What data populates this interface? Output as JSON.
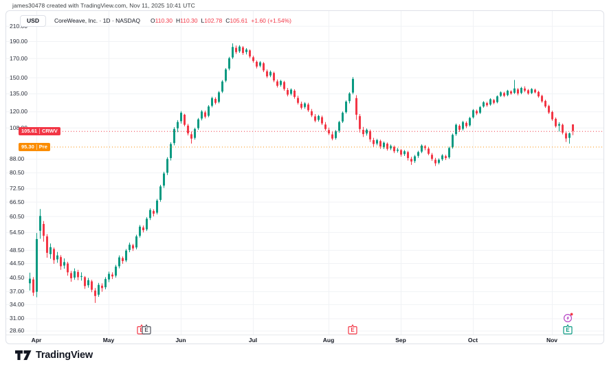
{
  "attribution": "james30478 created with TradingView.com, Nov 11, 2025 10:41 UTC",
  "legend": {
    "currency_button": "USD",
    "title": "CoreWeave, Inc. · 1D · NASDAQ",
    "ohlc": {
      "o_label": "O",
      "o": "110.30",
      "h_label": "H",
      "h": "110.30",
      "l_label": "L",
      "l": "102.78",
      "c_label": "C",
      "c": "105.61",
      "change": "+1.60 (+1.54%)"
    }
  },
  "colors": {
    "up": "#089981",
    "down": "#f23645",
    "grid": "#f0f2f5",
    "axis_line": "#e6e8ec",
    "last_price": "#f23645",
    "premarket": "#fb8c00",
    "key_event": "#b544c4",
    "earnings_gray": "#50535e"
  },
  "price_lines": [
    {
      "value": "105.61",
      "tag": "CRWV",
      "price": 105.61,
      "color": "#f23645"
    },
    {
      "value": "95.30",
      "tag": "Pre",
      "price": 95.3,
      "color": "#fb8c00"
    }
  ],
  "footer": {
    "logo_text": "TradingView"
  },
  "chart_data": {
    "type": "candlestick",
    "title": "CoreWeave, Inc. · 1D · NASDAQ",
    "symbol": "CRWV",
    "exchange": "NASDAQ",
    "interval": "1D",
    "currency": "USD",
    "scale": "logarithmic",
    "ylim": [
      28.6,
      210
    ],
    "grid": true,
    "last_bar": {
      "open": 110.3,
      "high": 110.3,
      "low": 102.78,
      "close": 105.61,
      "change": "+1.60 (+1.54%)"
    },
    "premarket_price": 95.3,
    "price_ticks": [
      210.0,
      190.0,
      170.0,
      150.0,
      135.0,
      120.0,
      108.0,
      88.0,
      80.5,
      72.5,
      66.5,
      60.5,
      54.5,
      48.5,
      44.5,
      40.5,
      37.0,
      34.0,
      31.0,
      28.6
    ],
    "months": [
      {
        "label": "Apr",
        "index": 2
      },
      {
        "label": "May",
        "index": 23
      },
      {
        "label": "Jun",
        "index": 44
      },
      {
        "label": "Jul",
        "index": 65
      },
      {
        "label": "Aug",
        "index": 87
      },
      {
        "label": "Sep",
        "index": 108
      },
      {
        "label": "Oct",
        "index": 129
      },
      {
        "label": "Nov",
        "index": 152
      }
    ],
    "markers": [
      {
        "name": "earnings-badge-may-back",
        "kind": "earnings",
        "glyph": "E",
        "color": "#f23645",
        "index": 32.6
      },
      {
        "name": "earnings-badge-may-front",
        "kind": "earnings",
        "glyph": "E",
        "color": "#50535e",
        "index": 34.0
      },
      {
        "name": "earnings-badge-aug",
        "kind": "earnings",
        "glyph": "E",
        "color": "#f23645",
        "index": 94.0
      },
      {
        "name": "key-events-icon",
        "kind": "key-event",
        "glyph": "lightning",
        "color": "#b544c4",
        "index": 156.6
      },
      {
        "name": "earnings-badge-nov",
        "kind": "earnings",
        "glyph": "E",
        "color": "#089981",
        "index": 156.6
      }
    ],
    "candles": [
      [
        39.0,
        41.8,
        37.2,
        40.2
      ],
      [
        40.0,
        40.6,
        35.9,
        36.7
      ],
      [
        36.9,
        54.2,
        35.6,
        52.1
      ],
      [
        55.0,
        63.4,
        52.2,
        60.6
      ],
      [
        57.5,
        58.6,
        51.2,
        53.2
      ],
      [
        53.0,
        53.8,
        46.1,
        47.6
      ],
      [
        47.2,
        50.6,
        45.8,
        49.4
      ],
      [
        48.8,
        49.3,
        44.3,
        45.4
      ],
      [
        45.6,
        47.9,
        44.6,
        46.8
      ],
      [
        46.3,
        46.9,
        42.6,
        43.6
      ],
      [
        43.8,
        45.9,
        42.9,
        44.8
      ],
      [
        44.4,
        44.9,
        41.0,
        41.9
      ],
      [
        41.7,
        42.3,
        39.4,
        40.3
      ],
      [
        40.5,
        43.0,
        39.9,
        42.2
      ],
      [
        42.0,
        42.6,
        39.8,
        40.6
      ],
      [
        40.7,
        41.9,
        39.7,
        40.9
      ],
      [
        40.6,
        40.9,
        37.6,
        38.3
      ],
      [
        38.5,
        40.4,
        37.9,
        39.8
      ],
      [
        39.5,
        39.9,
        36.8,
        37.4
      ],
      [
        37.2,
        37.8,
        34.3,
        35.9
      ],
      [
        36.2,
        39.1,
        35.7,
        38.6
      ],
      [
        38.4,
        39.0,
        36.9,
        37.8
      ],
      [
        38.0,
        40.6,
        37.5,
        40.1
      ],
      [
        40.0,
        42.1,
        39.3,
        41.5
      ],
      [
        41.3,
        41.9,
        40.1,
        40.8
      ],
      [
        41.0,
        44.0,
        40.5,
        43.5
      ],
      [
        43.6,
        46.8,
        43.0,
        46.2
      ],
      [
        46.0,
        46.5,
        44.3,
        45.1
      ],
      [
        45.3,
        48.8,
        44.8,
        48.3
      ],
      [
        48.5,
        50.9,
        47.8,
        50.2
      ],
      [
        50.0,
        50.5,
        48.2,
        49.0
      ],
      [
        49.3,
        53.6,
        48.7,
        53.0
      ],
      [
        53.2,
        57.1,
        52.6,
        56.5
      ],
      [
        56.2,
        56.9,
        54.4,
        55.2
      ],
      [
        55.5,
        60.1,
        54.9,
        59.5
      ],
      [
        59.8,
        63.7,
        59.0,
        63.0
      ],
      [
        62.6,
        63.3,
        60.4,
        61.5
      ],
      [
        61.9,
        67.7,
        61.2,
        67.0
      ],
      [
        67.3,
        74.3,
        66.5,
        73.5
      ],
      [
        73.9,
        80.9,
        72.8,
        80.0
      ],
      [
        80.4,
        89.0,
        79.2,
        88.0
      ],
      [
        88.5,
        98.1,
        87.1,
        97.0
      ],
      [
        97.6,
        108.3,
        96.2,
        107.0
      ],
      [
        107.5,
        113.4,
        104.8,
        112.0
      ],
      [
        112.6,
        120.3,
        110.9,
        119.0
      ],
      [
        117.5,
        118.2,
        108.9,
        110.0
      ],
      [
        109.4,
        110.6,
        102.6,
        104.0
      ],
      [
        103.4,
        105.2,
        97.3,
        100.5
      ],
      [
        101.0,
        107.9,
        99.8,
        107.0
      ],
      [
        107.6,
        115.0,
        106.4,
        114.0
      ],
      [
        114.6,
        121.1,
        113.2,
        120.0
      ],
      [
        119.3,
        120.7,
        114.7,
        116.0
      ],
      [
        116.7,
        125.1,
        115.6,
        124.0
      ],
      [
        124.6,
        132.2,
        123.3,
        131.0
      ],
      [
        130.3,
        131.7,
        125.6,
        127.0
      ],
      [
        127.8,
        137.2,
        126.6,
        136.0
      ],
      [
        136.7,
        147.3,
        135.4,
        146.0
      ],
      [
        146.8,
        159.4,
        145.3,
        158.0
      ],
      [
        158.9,
        171.6,
        157.1,
        170.0
      ],
      [
        170.9,
        187.4,
        169.2,
        183.0
      ],
      [
        182.0,
        184.8,
        174.9,
        177.0
      ],
      [
        177.9,
        185.2,
        176.1,
        183.5
      ],
      [
        182.5,
        184.1,
        173.8,
        176.0
      ],
      [
        177.0,
        181.7,
        174.3,
        180.0
      ],
      [
        179.0,
        180.2,
        170.1,
        172.0
      ],
      [
        171.1,
        172.8,
        165.1,
        167.0
      ],
      [
        166.1,
        167.6,
        159.0,
        161.0
      ],
      [
        161.9,
        166.9,
        160.2,
        165.5
      ],
      [
        164.5,
        165.9,
        155.2,
        157.0
      ],
      [
        156.1,
        158.0,
        149.3,
        151.0
      ],
      [
        151.9,
        156.9,
        150.3,
        155.5
      ],
      [
        154.4,
        155.7,
        145.4,
        147.0
      ],
      [
        146.1,
        148.0,
        140.4,
        142.0
      ],
      [
        142.8,
        147.7,
        141.2,
        146.5
      ],
      [
        145.5,
        146.7,
        137.4,
        139.0
      ],
      [
        138.1,
        140.0,
        132.5,
        134.0
      ],
      [
        134.7,
        139.6,
        133.3,
        138.5
      ],
      [
        137.5,
        138.8,
        130.5,
        132.0
      ],
      [
        131.1,
        133.0,
        125.6,
        127.0
      ],
      [
        126.2,
        128.0,
        121.6,
        123.0
      ],
      [
        123.6,
        127.5,
        122.2,
        126.5
      ],
      [
        125.6,
        127.0,
        119.7,
        121.0
      ],
      [
        120.2,
        122.0,
        115.7,
        117.0
      ],
      [
        116.2,
        118.0,
        111.8,
        113.0
      ],
      [
        113.6,
        117.4,
        112.3,
        116.5
      ],
      [
        115.6,
        116.8,
        109.8,
        111.0
      ],
      [
        110.2,
        112.0,
        105.8,
        107.0
      ],
      [
        106.3,
        108.0,
        102.9,
        104.0
      ],
      [
        103.3,
        105.0,
        99.4,
        100.5
      ],
      [
        100.9,
        106.3,
        99.8,
        105.5
      ],
      [
        105.8,
        112.9,
        104.4,
        112.0
      ],
      [
        112.4,
        120.0,
        111.3,
        119.0
      ],
      [
        119.5,
        129.0,
        118.4,
        128.0
      ],
      [
        128.4,
        136.1,
        126.5,
        135.0
      ],
      [
        135.8,
        150.3,
        134.3,
        148.5
      ],
      [
        131.0,
        133.5,
        113.6,
        117.5
      ],
      [
        116.4,
        118.0,
        104.6,
        107.0
      ],
      [
        106.4,
        108.5,
        101.6,
        103.5
      ],
      [
        103.9,
        107.4,
        102.5,
        106.5
      ],
      [
        105.5,
        106.6,
        98.3,
        100.0
      ],
      [
        99.5,
        101.0,
        95.3,
        97.0
      ],
      [
        97.3,
        100.4,
        96.2,
        99.5
      ],
      [
        98.9,
        99.8,
        94.0,
        95.5
      ],
      [
        95.0,
        98.6,
        93.9,
        97.8
      ],
      [
        97.2,
        98.0,
        92.9,
        94.0
      ],
      [
        94.3,
        96.7,
        93.2,
        95.8
      ],
      [
        95.2,
        96.0,
        91.4,
        92.5
      ],
      [
        92.8,
        94.6,
        91.7,
        93.5
      ],
      [
        93.2,
        93.9,
        89.3,
        90.5
      ],
      [
        90.8,
        93.3,
        89.7,
        92.5
      ],
      [
        92.0,
        92.8,
        87.1,
        88.5
      ],
      [
        88.0,
        89.2,
        84.6,
        86.5
      ],
      [
        86.8,
        90.3,
        85.7,
        89.5
      ],
      [
        89.8,
        92.8,
        88.6,
        92.0
      ],
      [
        92.3,
        96.8,
        91.4,
        96.0
      ],
      [
        95.6,
        96.4,
        93.1,
        94.5
      ],
      [
        94.1,
        95.0,
        90.1,
        91.0
      ],
      [
        90.4,
        91.5,
        86.9,
        88.0
      ],
      [
        87.5,
        88.6,
        84.0,
        85.5
      ],
      [
        85.8,
        88.3,
        84.9,
        87.5
      ],
      [
        87.8,
        90.8,
        86.9,
        90.0
      ],
      [
        89.6,
        90.4,
        87.4,
        88.5
      ],
      [
        88.9,
        95.3,
        88.0,
        94.5
      ],
      [
        94.9,
        103.9,
        94.1,
        103.0
      ],
      [
        103.5,
        110.9,
        102.4,
        110.0
      ],
      [
        109.3,
        110.4,
        105.1,
        106.5
      ],
      [
        107.1,
        112.9,
        106.0,
        112.0
      ],
      [
        111.4,
        112.5,
        107.6,
        109.0
      ],
      [
        109.6,
        115.9,
        108.7,
        115.0
      ],
      [
        115.5,
        121.9,
        114.6,
        121.0
      ],
      [
        120.4,
        121.5,
        117.2,
        118.5
      ],
      [
        119.0,
        124.4,
        118.1,
        123.5
      ],
      [
        124.0,
        128.4,
        123.0,
        127.5
      ],
      [
        126.8,
        127.9,
        123.8,
        125.0
      ],
      [
        125.6,
        130.9,
        124.6,
        130.0
      ],
      [
        129.3,
        130.3,
        125.8,
        127.0
      ],
      [
        127.6,
        133.3,
        126.6,
        132.5
      ],
      [
        133.0,
        136.9,
        132.0,
        136.0
      ],
      [
        135.4,
        136.5,
        131.8,
        133.0
      ],
      [
        133.6,
        138.3,
        132.6,
        137.5
      ],
      [
        136.9,
        137.9,
        133.9,
        135.0
      ],
      [
        135.6,
        147.5,
        134.6,
        139.5
      ],
      [
        138.7,
        139.9,
        133.4,
        135.0
      ],
      [
        135.5,
        141.0,
        134.4,
        140.0
      ],
      [
        139.5,
        141.5,
        136.1,
        137.5
      ],
      [
        137.9,
        139.0,
        133.9,
        135.0
      ],
      [
        135.4,
        139.8,
        134.5,
        139.0
      ],
      [
        138.4,
        139.4,
        135.1,
        136.0
      ],
      [
        136.4,
        137.4,
        131.3,
        132.5
      ],
      [
        132.9,
        133.9,
        127.1,
        128.2
      ],
      [
        128.6,
        129.6,
        122.8,
        124.0
      ],
      [
        124.4,
        125.4,
        118.1,
        119.2
      ],
      [
        119.6,
        120.6,
        112.9,
        114.0
      ],
      [
        114.4,
        115.4,
        108.0,
        109.0
      ],
      [
        109.4,
        111.9,
        105.3,
        110.5
      ],
      [
        110.0,
        110.9,
        103.3,
        104.5
      ],
      [
        104.0,
        105.0,
        98.3,
        100.6
      ],
      [
        101.0,
        104.6,
        97.2,
        104.0
      ],
      [
        110.3,
        110.3,
        102.78,
        105.61
      ]
    ]
  }
}
